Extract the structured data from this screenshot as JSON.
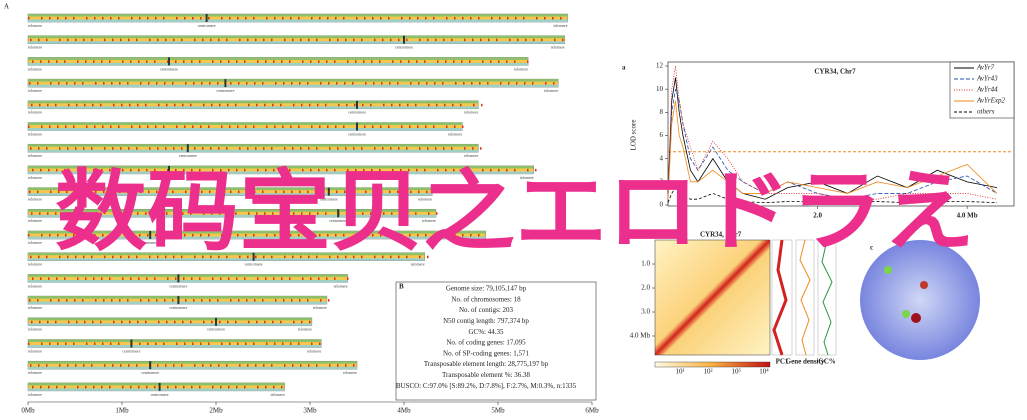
{
  "panel_A": {
    "label": "A",
    "telomere": "telomere",
    "centromere": "centromere",
    "lengths": [
      5.74,
      5.71,
      5.32,
      5.64,
      4.79,
      4.62,
      4.79,
      5.38,
      4.3,
      4.34,
      4.87,
      4.22,
      3.4,
      3.18,
      3.02,
      3.12,
      3.5,
      2.73
    ],
    "centromeres": [
      1.9,
      4.0,
      1.5,
      2.1,
      3.5,
      3.5,
      1.7,
      1.5,
      3.2,
      3.3,
      1.3,
      2.4,
      1.6,
      1.6,
      2.0,
      1.1,
      1.3,
      1.4
    ],
    "xlim": [
      0,
      6
    ],
    "xticks": [
      {
        "value": 0,
        "label": "0Mb"
      },
      {
        "value": 1,
        "label": "1Mb"
      },
      {
        "value": 2,
        "label": "2Mb"
      },
      {
        "value": 3,
        "label": "3Mb"
      },
      {
        "value": 4,
        "label": "4Mb"
      },
      {
        "value": 5,
        "label": "5Mb"
      },
      {
        "value": 6,
        "label": "6Mb"
      }
    ]
  },
  "panel_B": {
    "label": "B",
    "lines": [
      "Genome size: 79,105,147 bp",
      "No. of chromosomes: 18",
      "No. of contigs: 203",
      "N50 contig length: 797,374 bp",
      "GC%: 44.35",
      "No. of coding genes: 17,095",
      "No. of SP-coding genes: 1,571",
      "Transposable element length: 28,775,197 bp",
      "Transposable element %: 36.38",
      "BUSCO: C:97.0% [S:89.2%, D:7.8%], F:2.7%, M:0.3%, n:1335"
    ]
  },
  "panel_a": {
    "label": "a",
    "title": "CYR34, Chr7",
    "ylabel": "LOD score",
    "ylim": [
      0,
      12
    ],
    "yticks": [
      0,
      2,
      4,
      6,
      8,
      10,
      12
    ],
    "xlim": [
      0,
      4.6
    ],
    "xticks": [
      {
        "value": 2,
        "label": "2.0"
      },
      {
        "value": 4,
        "label": "4.0 Mb"
      }
    ],
    "threshold": 4.6,
    "x": [
      0,
      0.05,
      0.1,
      0.15,
      0.2,
      0.3,
      0.4,
      0.6,
      0.8,
      1.0,
      1.3,
      1.6,
      2.0,
      2.4,
      2.8,
      3.2,
      3.6,
      4.0,
      4.4
    ],
    "series": [
      {
        "name": "AvYr7",
        "color": "#000000",
        "dash": "",
        "values": [
          1,
          9,
          11,
          8,
          6,
          3,
          2,
          4,
          2,
          1,
          0.5,
          1.5,
          2,
          1,
          2.5,
          1.5,
          3,
          2,
          1.5
        ]
      },
      {
        "name": "AvYr43",
        "color": "#1f4fb4",
        "dash": "4 2",
        "values": [
          0.5,
          8,
          10,
          9,
          7,
          4,
          3,
          5,
          3,
          2,
          1,
          2,
          1,
          0.5,
          1,
          1,
          2,
          2.5,
          1
        ]
      },
      {
        "name": "AvYr44",
        "color": "#e0201c",
        "dash": "1 1.5",
        "values": [
          0.5,
          10,
          12,
          9,
          7,
          5,
          3,
          5.5,
          4,
          2,
          1,
          1,
          1,
          0.5,
          0.5,
          1,
          1,
          1,
          0.5
        ]
      },
      {
        "name": "AvYrExp2",
        "color": "#f08a1c",
        "dash": "",
        "values": [
          0.5,
          7,
          9,
          6,
          5,
          2,
          2,
          3,
          2,
          1,
          1,
          2,
          1.5,
          1,
          2,
          1.5,
          2.5,
          3.5,
          1
        ]
      },
      {
        "name": "others",
        "color": "#000000",
        "dash": "3 2",
        "values": [
          0.2,
          1,
          1.5,
          1,
          0.8,
          0.5,
          0.5,
          1,
          0.5,
          0.3,
          0.2,
          0.3,
          0.3,
          0.2,
          0.3,
          0.2,
          0.3,
          0.3,
          0.2
        ]
      }
    ]
  },
  "panel_b": {
    "label": "b",
    "title": "CYR34, Chr7",
    "yticks": [
      {
        "value": 1,
        "label": "1.0"
      },
      {
        "value": 2,
        "label": "2.0"
      },
      {
        "value": 3,
        "label": "3.0"
      },
      {
        "value": 4,
        "label": "4.0 Mb"
      }
    ],
    "colorbar": [
      "10¹",
      "10²",
      "10³",
      "10⁴"
    ],
    "tracks": [
      "PC1",
      "Gene density",
      "GC%"
    ]
  },
  "panel_c": {
    "label": "c"
  },
  "watermark": "数码宝贝之エロドラえ"
}
